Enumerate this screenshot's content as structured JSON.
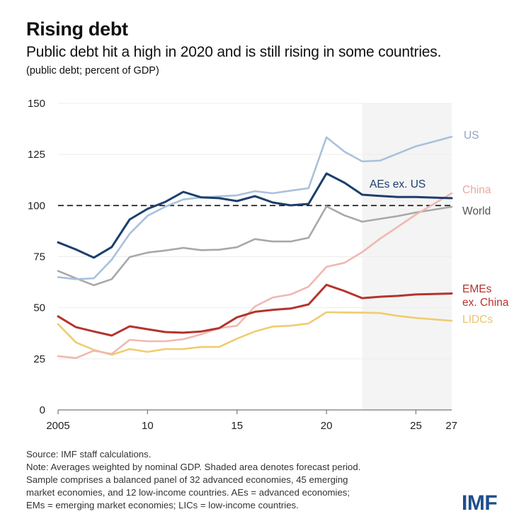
{
  "header": {
    "title": "Rising debt",
    "subtitle": "Public debt hit a high in 2020 and is still rising in some countries.",
    "units": "(public debt; percent of GDP)"
  },
  "chart_data": {
    "type": "line",
    "title": "Rising debt",
    "subtitle": "Public debt hit a high in 2020 and is still rising in some countries.",
    "xlabel": "",
    "ylabel": "public debt; percent of GDP",
    "x": [
      2005,
      2006,
      2007,
      2008,
      2009,
      2010,
      2011,
      2012,
      2013,
      2014,
      2015,
      2016,
      2017,
      2018,
      2019,
      2020,
      2021,
      2022,
      2023,
      2024,
      2025,
      2026,
      2027
    ],
    "xlim": [
      2005,
      2027
    ],
    "ylim": [
      0,
      150
    ],
    "yticks": [
      0,
      25,
      50,
      75,
      100,
      125,
      150
    ],
    "ytick_labels": [
      "0",
      "25",
      "50",
      "75",
      "100",
      "125",
      "150"
    ],
    "xticks": [
      2005,
      2010,
      2015,
      2020,
      2025,
      2027
    ],
    "xtick_labels": [
      "2005",
      "10",
      "15",
      "20",
      "25",
      "27"
    ],
    "grid": true,
    "reference_line": {
      "value": 100,
      "style": "dashed",
      "color": "#111111"
    },
    "forecast_shading": {
      "from": 2022,
      "to": 2027,
      "color": "#f4f4f4",
      "label": "forecast period"
    },
    "legend": "inline-right",
    "series": [
      {
        "name": "US",
        "label_lines": [
          "US"
        ],
        "color": "#a9c1dc",
        "values": [
          65,
          64,
          64.4,
          73.5,
          86.2,
          95,
          99.5,
          103,
          104,
          104.5,
          105,
          107,
          106,
          107.3,
          108.5,
          133.4,
          126.4,
          121.6,
          122,
          125.5,
          129,
          131.3,
          133.7
        ]
      },
      {
        "name": "AEs ex. US",
        "label_lines": [
          "AEs ex. US"
        ],
        "color": "#1b3f6b",
        "values": [
          82,
          78.5,
          74.5,
          79.7,
          93.2,
          98.4,
          101.8,
          106.7,
          104,
          103.6,
          102.2,
          104.6,
          101.5,
          100.1,
          100.8,
          115.7,
          111.2,
          105.3,
          104.7,
          104.2,
          104.2,
          103.9,
          103.6
        ]
      },
      {
        "name": "China",
        "label_lines": [
          "China"
        ],
        "color": "#f0b8b0",
        "values": [
          26.3,
          25.4,
          29,
          27.4,
          34.3,
          33.6,
          33.6,
          34.6,
          37,
          40,
          41.2,
          50.6,
          55,
          56.5,
          60.3,
          70,
          72,
          77.2,
          83.8,
          89.7,
          95.6,
          100.8,
          106
        ]
      },
      {
        "name": "World",
        "label_lines": [
          "World"
        ],
        "color": "#a8a8a8",
        "values": [
          68,
          64.4,
          61,
          64,
          74.8,
          77,
          78,
          79.3,
          78.2,
          78.4,
          79.6,
          83.6,
          82.4,
          82.4,
          84.2,
          99.6,
          95.2,
          92.1,
          93.5,
          94.9,
          96.6,
          98,
          99.4
        ]
      },
      {
        "name": "EMEs ex. China",
        "label_lines": [
          "EMEs",
          "ex. China"
        ],
        "color": "#b5332e",
        "values": [
          45.8,
          40.5,
          38.4,
          36.4,
          40.9,
          39.5,
          38.1,
          37.8,
          38.4,
          40,
          45.3,
          48,
          49,
          49.6,
          51.6,
          61.2,
          58.2,
          54.7,
          55.4,
          55.8,
          56.5,
          56.7,
          57
        ]
      },
      {
        "name": "LIDCs",
        "label_lines": [
          "LIDCs"
        ],
        "color": "#f0cc70",
        "values": [
          42,
          33,
          29.4,
          27,
          29.8,
          28.4,
          29.8,
          29.8,
          30.8,
          30.8,
          34.9,
          38.4,
          40.8,
          41.2,
          42.3,
          47.8,
          47.7,
          47.6,
          47.4,
          46,
          45,
          44.3,
          43.6
        ]
      }
    ],
    "label_colors": {
      "US": "#8fa6bd",
      "AEs ex. US": "#1b3f6b",
      "China": "#e8a9a0",
      "World": "#555555",
      "EMEs ex. China": "#b5332e",
      "LIDCs": "#e9c46a"
    }
  },
  "footer": {
    "lines": [
      "Source: IMF staff calculations.",
      "Note: Averages weighted by nominal GDP. Shaded area denotes forecast period.",
      "Sample comprises a balanced panel of 32 advanced economies, 45 emerging",
      "market economies, and 12 low-income countries. AEs = advanced economies;",
      "EMs = emerging market economies; LICs = low-income countries."
    ],
    "logo": "IMF"
  }
}
